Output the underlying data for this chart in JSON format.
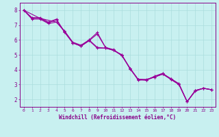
{
  "title": "",
  "xlabel": "Windchill (Refroidissement éolien,°C)",
  "ylabel": "",
  "bg_color": "#c8f0f0",
  "line_color": "#990099",
  "grid_color": "#aadddd",
  "axis_color": "#880088",
  "xlim": [
    -0.5,
    23.5
  ],
  "ylim": [
    1.5,
    8.5
  ],
  "yticks": [
    2,
    3,
    4,
    5,
    6,
    7,
    8
  ],
  "xticks": [
    0,
    1,
    2,
    3,
    4,
    5,
    6,
    7,
    8,
    9,
    10,
    11,
    12,
    13,
    14,
    15,
    16,
    17,
    18,
    19,
    20,
    21,
    22,
    23
  ],
  "curves": [
    {
      "x": [
        0,
        1,
        2,
        3,
        4,
        5,
        6,
        7,
        8,
        9,
        10,
        11,
        12,
        13,
        14,
        15,
        16,
        17,
        18,
        19,
        20,
        21,
        22,
        23
      ],
      "y": [
        8.0,
        7.5,
        7.5,
        7.2,
        7.4,
        6.5,
        5.8,
        5.6,
        6.0,
        6.5,
        5.5,
        5.3,
        5.0,
        4.1,
        3.3,
        3.3,
        3.5,
        3.7,
        3.4,
        3.05,
        1.85,
        2.6,
        2.75,
        2.65
      ]
    },
    {
      "x": [
        0,
        1,
        2,
        3,
        4,
        5,
        6,
        7,
        8,
        9,
        10,
        11,
        12,
        13,
        14,
        15,
        16,
        17,
        18,
        19,
        20,
        21,
        22,
        23
      ],
      "y": [
        8.0,
        7.4,
        7.4,
        7.1,
        7.2,
        6.6,
        5.85,
        5.65,
        6.0,
        5.5,
        5.45,
        5.3,
        5.0,
        4.05,
        3.35,
        3.3,
        3.55,
        3.75,
        3.4,
        3.05,
        1.85,
        2.55,
        2.75,
        2.65
      ]
    },
    {
      "x": [
        0,
        1,
        2,
        3,
        4,
        5,
        6,
        7,
        8,
        9,
        10,
        11,
        12,
        13,
        14,
        15,
        16,
        17,
        18,
        19,
        20,
        21,
        22,
        23
      ],
      "y": [
        8.0,
        7.45,
        7.45,
        7.15,
        7.35,
        6.55,
        5.8,
        5.58,
        5.95,
        6.4,
        5.5,
        5.35,
        4.95,
        4.1,
        3.35,
        3.35,
        3.5,
        3.7,
        3.35,
        3.0,
        1.85,
        2.6,
        2.75,
        2.65
      ]
    },
    {
      "x": [
        0,
        2,
        4,
        5,
        6,
        7,
        8,
        9,
        10,
        11,
        12,
        13,
        14,
        15,
        16,
        17,
        18,
        19,
        20,
        21,
        22,
        23
      ],
      "y": [
        8.0,
        7.45,
        7.2,
        6.55,
        5.8,
        5.58,
        5.95,
        5.45,
        5.45,
        5.3,
        4.95,
        4.1,
        3.35,
        3.3,
        3.55,
        3.75,
        3.35,
        3.0,
        1.85,
        2.6,
        2.75,
        2.65
      ]
    }
  ]
}
